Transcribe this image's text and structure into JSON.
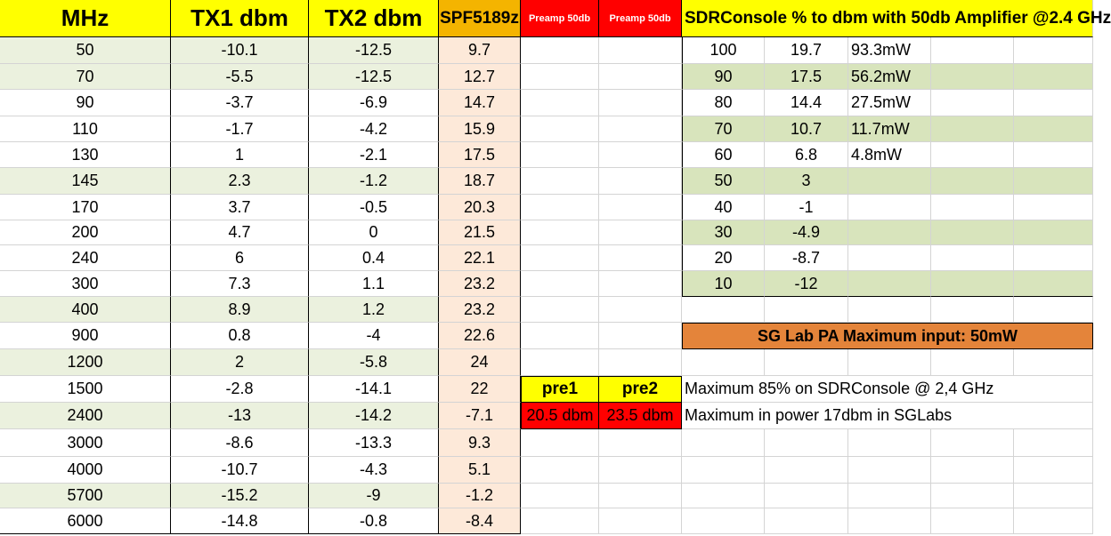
{
  "headers": {
    "mhz": "MHz",
    "tx1": "TX1 dbm",
    "tx2": "TX2 dbm",
    "spf": "SPF5189z",
    "preamp1": "Preamp 50db",
    "preamp2": "Preamp 50db",
    "sdr_title": "SDRConsole % to dbm with 50db Amplifier @2.4 GHz"
  },
  "main_rows": [
    {
      "mhz": "50",
      "tx1": "-10.1",
      "tx2": "-12.5",
      "spf": "9.7"
    },
    {
      "mhz": "70",
      "tx1": "-5.5",
      "tx2": "-12.5",
      "spf": "12.7"
    },
    {
      "mhz": "90",
      "tx1": "-3.7",
      "tx2": "-6.9",
      "spf": "14.7"
    },
    {
      "mhz": "110",
      "tx1": "-1.7",
      "tx2": "-4.2",
      "spf": "15.9"
    },
    {
      "mhz": "130",
      "tx1": "1",
      "tx2": "-2.1",
      "spf": "17.5"
    },
    {
      "mhz": "145",
      "tx1": "2.3",
      "tx2": "-1.2",
      "spf": "18.7"
    },
    {
      "mhz": "170",
      "tx1": "3.7",
      "tx2": "-0.5",
      "spf": "20.3"
    },
    {
      "mhz": "200",
      "tx1": "4.7",
      "tx2": "0",
      "spf": "21.5"
    },
    {
      "mhz": "240",
      "tx1": "6",
      "tx2": "0.4",
      "spf": "22.1"
    },
    {
      "mhz": "300",
      "tx1": "7.3",
      "tx2": "1.1",
      "spf": "23.2"
    },
    {
      "mhz": "400",
      "tx1": "8.9",
      "tx2": "1.2",
      "spf": "23.2"
    },
    {
      "mhz": "900",
      "tx1": "0.8",
      "tx2": "-4",
      "spf": "22.6"
    },
    {
      "mhz": "1200",
      "tx1": "2",
      "tx2": "-5.8",
      "spf": "24"
    },
    {
      "mhz": "1500",
      "tx1": "-2.8",
      "tx2": "-14.1",
      "spf": "22"
    },
    {
      "mhz": "2400",
      "tx1": "-13",
      "tx2": "-14.2",
      "spf": "-7.1"
    },
    {
      "mhz": "3000",
      "tx1": "-8.6",
      "tx2": "-13.3",
      "spf": "9.3"
    },
    {
      "mhz": "4000",
      "tx1": "-10.7",
      "tx2": "-4.3",
      "spf": "5.1"
    },
    {
      "mhz": "5700",
      "tx1": "-15.2",
      "tx2": "-9",
      "spf": "-1.2"
    },
    {
      "mhz": "6000",
      "tx1": "-14.8",
      "tx2": "-0.8",
      "spf": "-8.4"
    }
  ],
  "sdr_rows": [
    {
      "pct": "100",
      "dbm": "19.7",
      "mw": "93.3mW"
    },
    {
      "pct": "90",
      "dbm": "17.5",
      "mw": "56.2mW"
    },
    {
      "pct": "80",
      "dbm": "14.4",
      "mw": "27.5mW"
    },
    {
      "pct": "70",
      "dbm": "10.7",
      "mw": "11.7mW"
    },
    {
      "pct": "60",
      "dbm": "6.8",
      "mw": "4.8mW"
    },
    {
      "pct": "50",
      "dbm": "3",
      "mw": ""
    },
    {
      "pct": "40",
      "dbm": "-1",
      "mw": ""
    },
    {
      "pct": "30",
      "dbm": "-4.9",
      "mw": ""
    },
    {
      "pct": "20",
      "dbm": "-8.7",
      "mw": ""
    },
    {
      "pct": "10",
      "dbm": "-12",
      "mw": ""
    }
  ],
  "sg_lab_bar": "SG Lab PA Maximum input:   50mW",
  "pre": {
    "pre1_label": "pre1",
    "pre2_label": "pre2",
    "pre1_value": "20.5 dbm",
    "pre2_value": "23.5 dbm"
  },
  "notes": {
    "note1": "Maximum 85% on SDRConsole  @ 2,4 GHz",
    "note2": "Maximum in power 17dbm in SGLabs"
  },
  "colors": {
    "header_yellow": "#ffff00",
    "row_green": "#ebf1de",
    "spf_peach": "#fde9d9",
    "spf_header_orange": "#f4b400",
    "preamp_red": "#ff0000",
    "sdr_green": "#d8e4bc",
    "bar_orange": "#e4843a"
  }
}
